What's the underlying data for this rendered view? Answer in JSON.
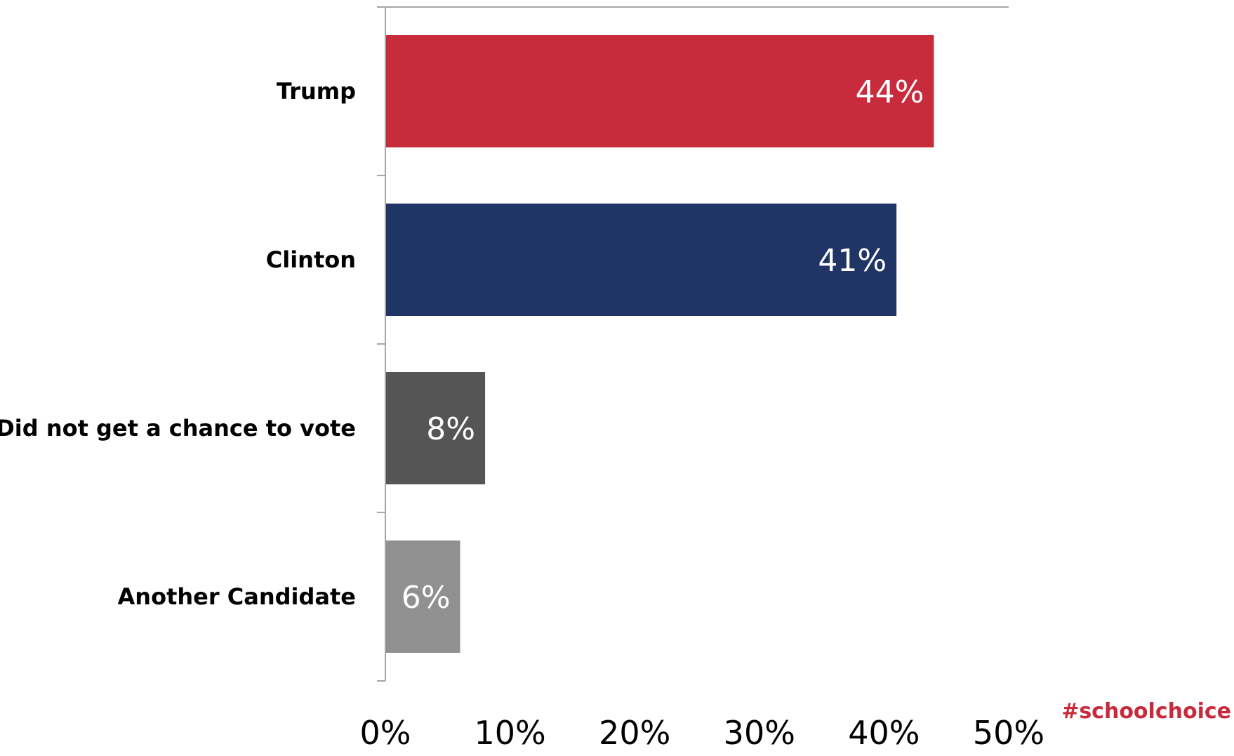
{
  "chart_data": {
    "type": "bar",
    "orientation": "horizontal",
    "categories": [
      "Trump",
      "Clinton",
      "Did not get a chance to vote",
      "Another Candidate"
    ],
    "values": [
      44,
      41,
      8,
      6
    ],
    "value_labels": [
      "44%",
      "41%",
      "8%",
      "6%"
    ],
    "colors": [
      "#c72b3c",
      "#203566",
      "#555555",
      "#909090"
    ],
    "xlim": [
      0,
      50
    ],
    "xticks": [
      0,
      10,
      20,
      30,
      40,
      50
    ],
    "xtick_labels": [
      "0%",
      "10%",
      "20%",
      "30%",
      "40%",
      "50%"
    ],
    "title": "",
    "xlabel": "",
    "ylabel": "",
    "grid": false,
    "legend": "none"
  },
  "footer": {
    "hashtag": "#schoolchoice",
    "hashtag_color": "#c82a3c"
  }
}
